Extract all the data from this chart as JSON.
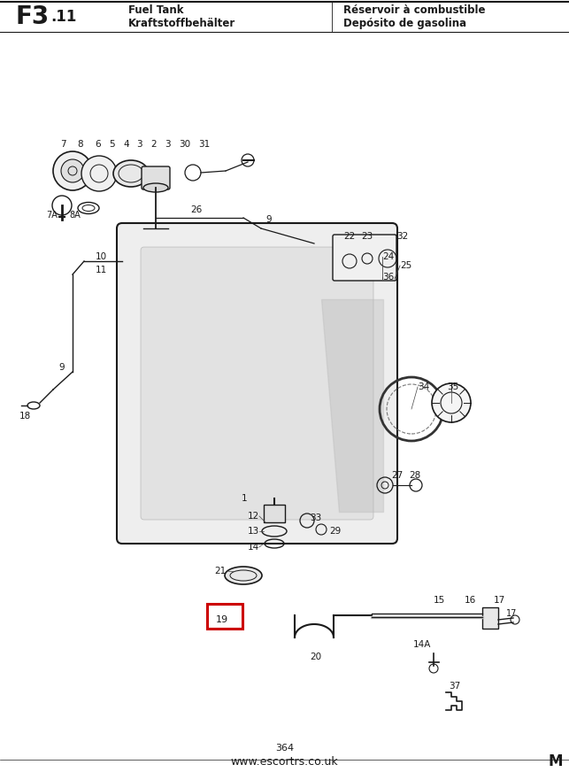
{
  "title_left_main": "F3",
  "title_left_sub": ".11",
  "title_center_line1": "Fuel Tank",
  "title_center_line2": "Kraftstoffbehälter",
  "title_right_line1": "Réservoir à combustible",
  "title_right_line2": "Depósito de gasolina",
  "footer_page": "364",
  "footer_url": "www.escortrs.co.uk",
  "footer_right": "M",
  "bg_color": "#ffffff",
  "line_color": "#1a1a1a",
  "highlight_box_color": "#cc0000",
  "highlight_number": "19",
  "fig_width": 6.43,
  "fig_height": 8.81,
  "dpi": 100
}
